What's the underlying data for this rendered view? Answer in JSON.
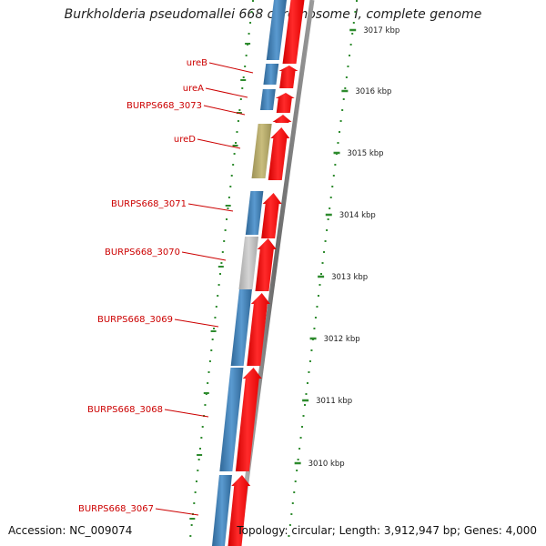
{
  "title": "Burkholderia pseudomallei 668 chromosome I, complete genome",
  "accession_text": "Accession: NC_009074",
  "topology_text": "Topology: circular; Length: 3,912,947 bp; Genes: 4,000",
  "colors": {
    "cds_forward": "#3e7fb8",
    "cds_reverse": "#ff0000",
    "gene_label": "#cc0000",
    "tick_green": "#2e8b2e",
    "backbone": "#777777",
    "olive_feature": "#b5a96a",
    "grey_feature": "#c0c0c0"
  },
  "scale_ticks": [
    {
      "label": "3017 kbp"
    },
    {
      "label": "3016 kbp"
    },
    {
      "label": "3015 kbp"
    },
    {
      "label": "3014 kbp"
    },
    {
      "label": "3013 kbp"
    },
    {
      "label": "3012 kbp"
    },
    {
      "label": "3011 kbp"
    },
    {
      "label": "3010 kbp"
    }
  ],
  "gene_labels": [
    {
      "text": "ureB"
    },
    {
      "text": "ureA"
    },
    {
      "text": "BURPS668_3073"
    },
    {
      "text": "ureD"
    },
    {
      "text": "BURPS668_3071"
    },
    {
      "text": "BURPS668_3070"
    },
    {
      "text": "BURPS668_3069"
    },
    {
      "text": "BURPS668_3068"
    },
    {
      "text": "BURPS668_3067"
    }
  ]
}
